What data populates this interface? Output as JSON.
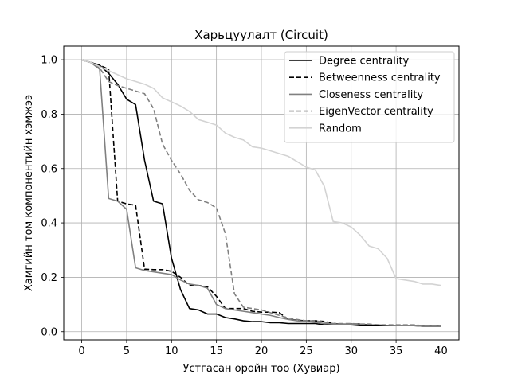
{
  "chart_data": {
    "type": "line",
    "title": "Харьцуулалт (Circuit)",
    "xlabel": "Устгасан оройн тоо (Хувиар)",
    "ylabel": "Хамгийн том компонентийн хэмжээ",
    "xlim": [
      -2,
      42
    ],
    "ylim": [
      -0.03,
      1.05
    ],
    "xticks": [
      0,
      5,
      10,
      15,
      20,
      25,
      30,
      35,
      40
    ],
    "yticks": [
      0.0,
      0.2,
      0.4,
      0.6,
      0.8,
      1.0
    ],
    "grid": true,
    "legend_position": "top-right",
    "series": [
      {
        "name": "Degree centrality",
        "color": "#000000",
        "dash": "solid",
        "points": [
          [
            0,
            1.0
          ],
          [
            1,
            0.99
          ],
          [
            2,
            0.98
          ],
          [
            3,
            0.95
          ],
          [
            4,
            0.91
          ],
          [
            5,
            0.855
          ],
          [
            6,
            0.835
          ],
          [
            7,
            0.63
          ],
          [
            8,
            0.48
          ],
          [
            9,
            0.47
          ],
          [
            10,
            0.27
          ],
          [
            11,
            0.155
          ],
          [
            12,
            0.085
          ],
          [
            13,
            0.08
          ],
          [
            14,
            0.065
          ],
          [
            15,
            0.065
          ],
          [
            16,
            0.052
          ],
          [
            17,
            0.047
          ],
          [
            18,
            0.04
          ],
          [
            19,
            0.037
          ],
          [
            20,
            0.037
          ],
          [
            21,
            0.033
          ],
          [
            22,
            0.033
          ],
          [
            23,
            0.03
          ],
          [
            24,
            0.03
          ],
          [
            25,
            0.03
          ],
          [
            26,
            0.03
          ],
          [
            27,
            0.025
          ],
          [
            28,
            0.025
          ],
          [
            29,
            0.025
          ],
          [
            30,
            0.025
          ],
          [
            31,
            0.022
          ],
          [
            32,
            0.022
          ],
          [
            33,
            0.022
          ],
          [
            34,
            0.022
          ],
          [
            35,
            0.022
          ],
          [
            36,
            0.022
          ],
          [
            37,
            0.022
          ],
          [
            38,
            0.02
          ],
          [
            39,
            0.02
          ],
          [
            40,
            0.02
          ]
        ]
      },
      {
        "name": "Betweenness centrality",
        "color": "#000000",
        "dash": "dashed",
        "points": [
          [
            0,
            1.0
          ],
          [
            1,
            0.99
          ],
          [
            2,
            0.98
          ],
          [
            3,
            0.965
          ],
          [
            4,
            0.48
          ],
          [
            5,
            0.47
          ],
          [
            6,
            0.465
          ],
          [
            7,
            0.23
          ],
          [
            8,
            0.228
          ],
          [
            9,
            0.228
          ],
          [
            10,
            0.222
          ],
          [
            11,
            0.2
          ],
          [
            12,
            0.17
          ],
          [
            13,
            0.17
          ],
          [
            14,
            0.165
          ],
          [
            15,
            0.13
          ],
          [
            16,
            0.085
          ],
          [
            17,
            0.085
          ],
          [
            18,
            0.085
          ],
          [
            19,
            0.075
          ],
          [
            20,
            0.072
          ],
          [
            21,
            0.072
          ],
          [
            22,
            0.07
          ],
          [
            23,
            0.045
          ],
          [
            24,
            0.042
          ],
          [
            25,
            0.04
          ],
          [
            26,
            0.04
          ],
          [
            27,
            0.038
          ],
          [
            28,
            0.03
          ],
          [
            29,
            0.028
          ],
          [
            30,
            0.028
          ],
          [
            31,
            0.028
          ],
          [
            32,
            0.025
          ],
          [
            33,
            0.023
          ],
          [
            34,
            0.023
          ],
          [
            35,
            0.022
          ],
          [
            36,
            0.022
          ],
          [
            37,
            0.022
          ],
          [
            38,
            0.022
          ],
          [
            39,
            0.022
          ],
          [
            40,
            0.022
          ]
        ]
      },
      {
        "name": "Closeness centrality",
        "color": "#808080",
        "dash": "solid",
        "points": [
          [
            0,
            1.0
          ],
          [
            1,
            0.99
          ],
          [
            2,
            0.965
          ],
          [
            3,
            0.49
          ],
          [
            4,
            0.48
          ],
          [
            5,
            0.45
          ],
          [
            6,
            0.235
          ],
          [
            7,
            0.225
          ],
          [
            8,
            0.22
          ],
          [
            9,
            0.215
          ],
          [
            10,
            0.21
          ],
          [
            11,
            0.19
          ],
          [
            12,
            0.175
          ],
          [
            13,
            0.17
          ],
          [
            14,
            0.16
          ],
          [
            15,
            0.1
          ],
          [
            16,
            0.085
          ],
          [
            17,
            0.08
          ],
          [
            18,
            0.075
          ],
          [
            19,
            0.07
          ],
          [
            20,
            0.065
          ],
          [
            21,
            0.06
          ],
          [
            22,
            0.052
          ],
          [
            23,
            0.045
          ],
          [
            24,
            0.04
          ],
          [
            25,
            0.038
          ],
          [
            26,
            0.035
          ],
          [
            27,
            0.03
          ],
          [
            28,
            0.028
          ],
          [
            29,
            0.028
          ],
          [
            30,
            0.027
          ],
          [
            31,
            0.025
          ],
          [
            32,
            0.025
          ],
          [
            33,
            0.025
          ],
          [
            34,
            0.023
          ],
          [
            35,
            0.022
          ],
          [
            36,
            0.022
          ],
          [
            37,
            0.022
          ],
          [
            38,
            0.02
          ],
          [
            39,
            0.02
          ],
          [
            40,
            0.02
          ]
        ]
      },
      {
        "name": "EigenVector centrality",
        "color": "#808080",
        "dash": "dashed",
        "points": [
          [
            0,
            1.0
          ],
          [
            1,
            0.99
          ],
          [
            2,
            0.97
          ],
          [
            3,
            0.92
          ],
          [
            4,
            0.905
          ],
          [
            5,
            0.895
          ],
          [
            6,
            0.885
          ],
          [
            7,
            0.875
          ],
          [
            8,
            0.82
          ],
          [
            9,
            0.69
          ],
          [
            10,
            0.63
          ],
          [
            11,
            0.58
          ],
          [
            12,
            0.52
          ],
          [
            13,
            0.485
          ],
          [
            14,
            0.475
          ],
          [
            15,
            0.455
          ],
          [
            16,
            0.36
          ],
          [
            17,
            0.14
          ],
          [
            18,
            0.09
          ],
          [
            19,
            0.085
          ],
          [
            20,
            0.08
          ],
          [
            21,
            0.07
          ],
          [
            22,
            0.06
          ],
          [
            23,
            0.05
          ],
          [
            24,
            0.045
          ],
          [
            25,
            0.04
          ],
          [
            26,
            0.04
          ],
          [
            27,
            0.035
          ],
          [
            28,
            0.03
          ],
          [
            29,
            0.03
          ],
          [
            30,
            0.03
          ],
          [
            31,
            0.028
          ],
          [
            32,
            0.028
          ],
          [
            33,
            0.025
          ],
          [
            34,
            0.025
          ],
          [
            35,
            0.025
          ],
          [
            36,
            0.025
          ],
          [
            37,
            0.025
          ],
          [
            38,
            0.022
          ],
          [
            39,
            0.022
          ],
          [
            40,
            0.022
          ]
        ]
      },
      {
        "name": "Random",
        "color": "#d3d3d3",
        "dash": "solid",
        "points": [
          [
            0,
            1.0
          ],
          [
            1,
            0.99
          ],
          [
            2,
            0.975
          ],
          [
            3,
            0.96
          ],
          [
            4,
            0.945
          ],
          [
            5,
            0.93
          ],
          [
            6,
            0.92
          ],
          [
            7,
            0.91
          ],
          [
            8,
            0.895
          ],
          [
            9,
            0.86
          ],
          [
            10,
            0.845
          ],
          [
            11,
            0.83
          ],
          [
            12,
            0.81
          ],
          [
            13,
            0.78
          ],
          [
            14,
            0.77
          ],
          [
            15,
            0.76
          ],
          [
            16,
            0.73
          ],
          [
            17,
            0.715
          ],
          [
            18,
            0.705
          ],
          [
            19,
            0.68
          ],
          [
            20,
            0.675
          ],
          [
            21,
            0.665
          ],
          [
            22,
            0.655
          ],
          [
            23,
            0.645
          ],
          [
            24,
            0.625
          ],
          [
            25,
            0.605
          ],
          [
            26,
            0.595
          ],
          [
            27,
            0.535
          ],
          [
            28,
            0.405
          ],
          [
            29,
            0.4
          ],
          [
            30,
            0.385
          ],
          [
            31,
            0.355
          ],
          [
            32,
            0.315
          ],
          [
            33,
            0.305
          ],
          [
            34,
            0.27
          ],
          [
            35,
            0.195
          ],
          [
            36,
            0.19
          ],
          [
            37,
            0.185
          ],
          [
            38,
            0.175
          ],
          [
            39,
            0.175
          ],
          [
            40,
            0.17
          ]
        ]
      }
    ]
  }
}
